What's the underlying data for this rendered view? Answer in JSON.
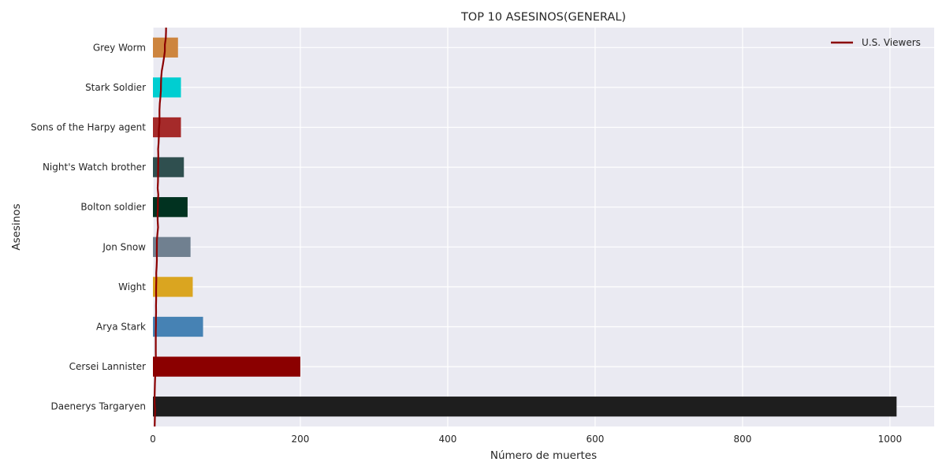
{
  "chart_data": {
    "type": "bar",
    "orientation": "horizontal",
    "title": "TOP 10 ASESINOS(GENERAL)",
    "xlabel": "Número de muertes",
    "ylabel": "Asesinos",
    "xlim": [
      0,
      1060
    ],
    "xticks": [
      0,
      200,
      400,
      600,
      800,
      1000
    ],
    "grid": true,
    "legend_position": "top-right",
    "categories": [
      "Daenerys Targaryen",
      "Cersei Lannister",
      "Arya Stark",
      "Wight",
      "Jon Snow",
      "Bolton soldier",
      "Night's Watch brother",
      "Sons of the Harpy agent",
      "Stark Soldier",
      "Grey Worm"
    ],
    "values": [
      1009,
      200,
      68,
      54,
      51,
      47,
      42,
      38,
      38,
      34
    ],
    "bar_colors": [
      "#1e1e1e",
      "#8b0000",
      "#4682b4",
      "#daa520",
      "#708090",
      "#013220",
      "#2f4f4f",
      "#a52a2a",
      "#00ced1",
      "#cd853f"
    ],
    "line_series": {
      "name": "U.S. Viewers",
      "color": "#8b0000",
      "x": [
        2.2,
        2.5,
        2.7,
        3.0,
        2.2,
        2.2,
        2.5,
        2.7,
        3.0,
        3.2,
        3.4,
        4.0,
        3.9,
        3.9,
        3.8,
        3.8,
        4.1,
        4.1,
        4.3,
        4.2,
        4.4,
        4.3,
        4.4,
        4.6,
        4.5,
        5.0,
        5.3,
        5.2,
        5.4,
        5.4,
        6.1,
        6.9,
        6.4,
        6.3,
        6.7,
        6.7,
        7.3,
        6.4,
        6.8,
        7.0,
        7.1,
        7.2,
        7.3,
        7.1,
        7.7,
        8.0,
        8.0,
        8.9,
        8.9,
        8.9,
        9.3,
        10.2,
        10.8,
        10.9,
        11.2,
        12.0,
        13.6,
        15.0,
        16.1,
        16.1,
        17.4,
        17.8,
        17.9,
        18.0,
        18.5,
        18.9
      ],
      "y_episode_index": [
        1,
        2,
        3,
        4,
        5,
        6,
        7,
        8,
        9,
        10,
        11,
        12,
        13,
        14,
        15,
        16,
        17,
        18,
        19,
        20,
        21,
        22,
        23,
        24,
        25,
        26,
        27,
        28,
        29,
        30,
        31,
        32,
        33,
        34,
        35,
        36,
        37,
        38,
        39,
        40,
        41,
        42,
        43,
        44,
        45,
        46,
        47,
        48,
        49,
        50,
        51,
        52,
        53,
        54,
        55,
        56,
        57,
        58,
        59,
        60,
        61,
        62,
        63,
        64,
        65,
        66
      ]
    }
  }
}
